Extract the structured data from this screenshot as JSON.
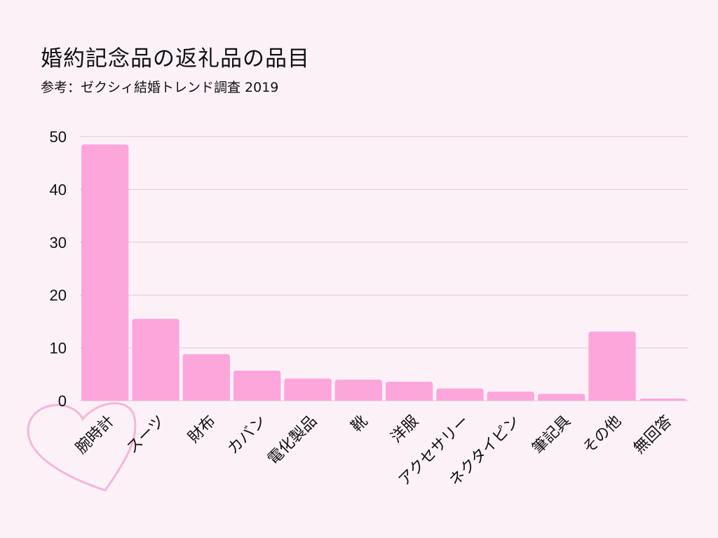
{
  "title": "婚約記念品の返礼品の品目",
  "subtitle": "参考：ゼクシィ結婚トレンド調査 2019",
  "colors": {
    "bar": "#fda6dc",
    "background": "#fdf1f8",
    "heart": "#f7b6d6",
    "grid": "#d8c8d0"
  },
  "chart_data": {
    "type": "bar",
    "title": "婚約記念品の返礼品の品目",
    "categories": [
      "腕時計",
      "スーツ",
      "財布",
      "カバン",
      "電化製品",
      "靴",
      "洋服",
      "アクセサリー",
      "ネクタイピン",
      "筆記具",
      "その他",
      "無回答"
    ],
    "values": [
      48.5,
      15.5,
      8.8,
      5.7,
      4.2,
      4.0,
      3.6,
      2.3,
      1.7,
      1.3,
      13.1,
      0.4
    ],
    "ylim": [
      0,
      50
    ],
    "yticks": [
      "0",
      "10",
      "20",
      "30",
      "40",
      "50"
    ],
    "grid": true,
    "highlight": "腕時計"
  }
}
